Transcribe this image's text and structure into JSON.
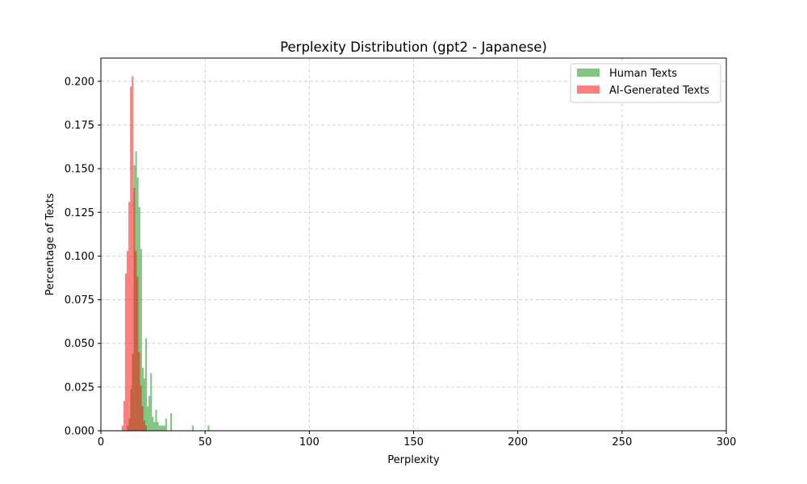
{
  "chart_data": {
    "type": "bar",
    "title": "Perplexity Distribution (gpt2 - Japanese)",
    "xlabel": "Perplexity",
    "ylabel": "Percentage of Texts",
    "xlim": [
      0,
      300
    ],
    "ylim": [
      0,
      0.2133
    ],
    "xticks": [
      0,
      50,
      100,
      150,
      200,
      250,
      300
    ],
    "xtick_labels": [
      "0",
      "50",
      "100",
      "150",
      "200",
      "250",
      "300"
    ],
    "yticks": [
      0,
      0.025,
      0.05,
      0.075,
      0.1,
      0.125,
      0.15,
      0.175,
      0.2
    ],
    "ytick_labels": [
      "0.000",
      "0.025",
      "0.050",
      "0.075",
      "0.100",
      "0.125",
      "0.150",
      "0.175",
      "0.200"
    ],
    "grid": true,
    "legend_position": "top-right",
    "bin_width": 0.8,
    "series": [
      {
        "name": "Human Texts",
        "color": "#2ca02c",
        "opacity": 0.6,
        "bins": [
          [
            12.5,
            0.003
          ],
          [
            13.3,
            0.007
          ],
          [
            14.1,
            0.024
          ],
          [
            14.9,
            0.044
          ],
          [
            15.7,
            0.152
          ],
          [
            16.5,
            0.16
          ],
          [
            17.3,
            0.145
          ],
          [
            18.1,
            0.128
          ],
          [
            18.9,
            0.104
          ],
          [
            19.7,
            0.036
          ],
          [
            20.5,
            0.03
          ],
          [
            21.3,
            0.053
          ],
          [
            22.1,
            0.014
          ],
          [
            22.9,
            0.02
          ],
          [
            23.7,
            0.033
          ],
          [
            24.5,
            0.008
          ],
          [
            25.3,
            0.005
          ],
          [
            26.1,
            0.012
          ],
          [
            26.9,
            0.005
          ],
          [
            27.7,
            0.003
          ],
          [
            28.5,
            0.003
          ],
          [
            29.3,
            0.003
          ],
          [
            30.1,
            0.003
          ],
          [
            30.9,
            0.007
          ],
          [
            33.3,
            0.01
          ],
          [
            43.7,
            0.003
          ],
          [
            51.3,
            0.003
          ]
        ]
      },
      {
        "name": "AI-Generated Texts",
        "color": "#ff0000",
        "opacity": 0.5,
        "bins": [
          [
            10.0,
            0.003
          ],
          [
            10.8,
            0.017
          ],
          [
            11.6,
            0.09
          ],
          [
            12.4,
            0.103
          ],
          [
            13.2,
            0.131
          ],
          [
            14.0,
            0.197
          ],
          [
            14.8,
            0.203
          ],
          [
            15.6,
            0.139
          ],
          [
            16.4,
            0.103
          ],
          [
            17.2,
            0.088
          ],
          [
            18.0,
            0.045
          ],
          [
            18.8,
            0.026
          ],
          [
            19.6,
            0.014
          ],
          [
            20.4,
            0.006
          ],
          [
            21.2,
            0.003
          ]
        ]
      }
    ]
  }
}
